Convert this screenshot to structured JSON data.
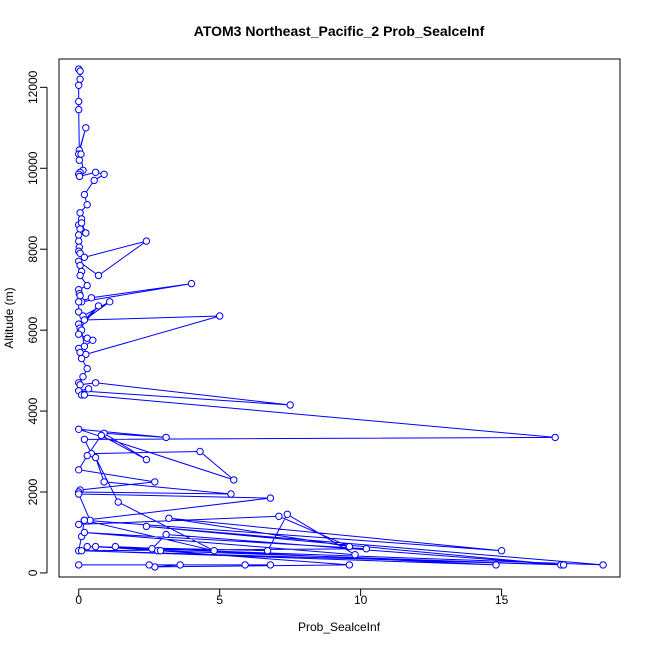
{
  "chart_data": {
    "type": "line",
    "title": "ATOM3 Northeast_Pacific_2 Prob_SealceInf",
    "xlabel": "Prob_SealceInf",
    "ylabel": "Altitude (m)",
    "xlim": [
      -0.7,
      19.2
    ],
    "ylim": [
      -100,
      12700
    ],
    "x_ticks": [
      0,
      5,
      10,
      15
    ],
    "x_tick_labels": [
      "0",
      "5",
      "10",
      "15"
    ],
    "y_ticks": [
      0,
      2000,
      4000,
      6000,
      8000,
      10000,
      12000
    ],
    "y_tick_labels": [
      "0",
      "2000",
      "4000",
      "6000",
      "8000",
      "10000",
      "12000"
    ],
    "grid": false,
    "markers": "open-circle",
    "line_color": "#0000ff",
    "series": [
      {
        "x": [
          0.0,
          0.05,
          0.05,
          0.0,
          0.0,
          0.0,
          0.02,
          0.25,
          0.0,
          0.02,
          0.08,
          0.15,
          0.05,
          0.0,
          0.03,
          0.6,
          0.9,
          0.55,
          0.2,
          0.3,
          0.05,
          0.1,
          0.0,
          0.05,
          0.1,
          0.25,
          0.0,
          0.0,
          0.02,
          0.0,
          0.05,
          0.2,
          2.4,
          0.7,
          0.0,
          0.05,
          0.1,
          0.05,
          0.3,
          0.0,
          0.02,
          0.05,
          0.1,
          4.0,
          0.45,
          0.0,
          0.0,
          0.15,
          1.1,
          0.0,
          0.05,
          0.7,
          0.2,
          5.0,
          0.25,
          0.1,
          0.0,
          0.3,
          0.5,
          0.2,
          0.0,
          0.05,
          0.1,
          0.3,
          0.15,
          0.0,
          0.05,
          0.6,
          7.5,
          0.0,
          0.35,
          0.1,
          0.2,
          16.9,
          0.2,
          0.45,
          4.3,
          5.5,
          0.0,
          3.1,
          0.9,
          2.4,
          0.8,
          0.3,
          0.0,
          2.7,
          0.05,
          0.0,
          5.4,
          0.9,
          0.6,
          1.4,
          4.8,
          0.2,
          6.8,
          0.0,
          0.4,
          0.0,
          7.1,
          9.6,
          3.2,
          15.0,
          0.2,
          0.1,
          0.0,
          10.2,
          0.2,
          9.8,
          7.4,
          6.7,
          0.3,
          18.6,
          2.4,
          17.1,
          3.1,
          2.6,
          0.6,
          2.8,
          1.3,
          14.8,
          0.1,
          17.2,
          2.9,
          9.6,
          2.7,
          3.6,
          5.9,
          6.8,
          2.5,
          0.0
        ],
        "y": [
          12450,
          12400,
          12200,
          12050,
          11650,
          11450,
          10450,
          11000,
          10350,
          10200,
          10350,
          9950,
          9900,
          9850,
          9800,
          9900,
          9850,
          9700,
          9350,
          9100,
          8900,
          8750,
          8600,
          8500,
          8650,
          8400,
          8350,
          8200,
          8050,
          7950,
          7900,
          7800,
          8200,
          7350,
          7700,
          7600,
          7450,
          7350,
          7100,
          7000,
          6900,
          6850,
          6700,
          7150,
          6800,
          6700,
          6450,
          6350,
          6700,
          6150,
          6050,
          6600,
          6250,
          6350,
          5400,
          6000,
          5900,
          5800,
          5750,
          5600,
          5550,
          5450,
          5300,
          5050,
          4850,
          4700,
          4650,
          4700,
          4150,
          4500,
          4550,
          4400,
          4400,
          3350,
          3300,
          2950,
          3000,
          2300,
          3550,
          3350,
          3450,
          2800,
          3400,
          2900,
          2550,
          2250,
          2050,
          2000,
          1950,
          2250,
          2850,
          1750,
          550,
          1300,
          1850,
          1950,
          1300,
          1200,
          1400,
          650,
          1350,
          550,
          1300,
          900,
          550,
          600,
          1000,
          450,
          1450,
          550,
          650,
          200,
          1150,
          200,
          950,
          600,
          650,
          550,
          650,
          200,
          550,
          200,
          550,
          200,
          150,
          200,
          200,
          200,
          200,
          200
        ]
      }
    ]
  }
}
